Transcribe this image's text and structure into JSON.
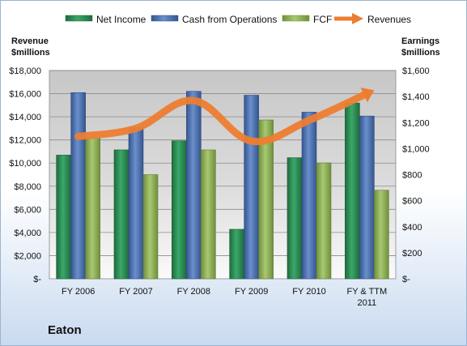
{
  "company_name": "Eaton",
  "chart_data": {
    "type": "bar",
    "categories": [
      "FY 2006",
      "FY 2007",
      "FY 2008",
      "FY 2009",
      "FY 2010",
      "FY & TTM 2011"
    ],
    "left_axis": {
      "title_line1": "Revenue",
      "title_line2": "$millions",
      "ylim": [
        0,
        18000
      ],
      "ticks": [
        "$-",
        "$2,000",
        "$4,000",
        "$6,000",
        "$8,000",
        "$10,000",
        "$12,000",
        "$14,000",
        "$16,000",
        "$18,000"
      ]
    },
    "right_axis": {
      "title_line1": "Earnings",
      "title_line2": "$millions",
      "ylim": [
        0,
        1600
      ],
      "ticks": [
        "$-",
        "$200",
        "$400",
        "$600",
        "$800",
        "$1,000",
        "$1,200",
        "$1,400",
        "$1,600"
      ]
    },
    "series": [
      {
        "name": "Net Income",
        "type": "bar",
        "axis": "right",
        "color": "#2e8b57",
        "values": [
          950,
          990,
          1060,
          380,
          930,
          1350
        ]
      },
      {
        "name": "Cash from Operations",
        "type": "bar",
        "axis": "right",
        "color": "#4a6fad",
        "values": [
          1430,
          1160,
          1440,
          1410,
          1280,
          1250
        ]
      },
      {
        "name": "FCF",
        "type": "bar",
        "axis": "right",
        "color": "#8fb05a",
        "values": [
          1080,
          800,
          990,
          1220,
          890,
          680
        ]
      },
      {
        "name": "Revenues",
        "type": "line",
        "axis": "left",
        "color": "#ed7d31",
        "values": [
          12300,
          13000,
          15400,
          11900,
          13700,
          16000
        ]
      }
    ],
    "grid": true,
    "legend": "top"
  }
}
